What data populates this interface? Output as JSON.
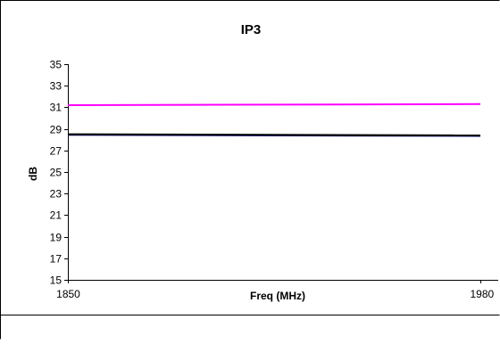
{
  "chart_data": {
    "type": "line",
    "title": "IP3",
    "xlabel": "Freq (MHz)",
    "ylabel": "dB",
    "x": [
      1850,
      1980
    ],
    "xlim": [
      1850,
      1980
    ],
    "ylim": [
      15,
      35
    ],
    "xticks": [
      "1850",
      "1980"
    ],
    "yticks": [
      "15",
      "17",
      "19",
      "21",
      "23",
      "25",
      "27",
      "29",
      "31",
      "33",
      "35"
    ],
    "grid": false,
    "legend": "none",
    "series": [
      {
        "values": [
          31.2,
          31.3
        ],
        "color": "#ff00ff"
      },
      {
        "values": [
          28.45,
          28.35
        ],
        "color": "#000080"
      },
      {
        "values": [
          28.5,
          28.4
        ],
        "color": "#000000"
      }
    ]
  }
}
